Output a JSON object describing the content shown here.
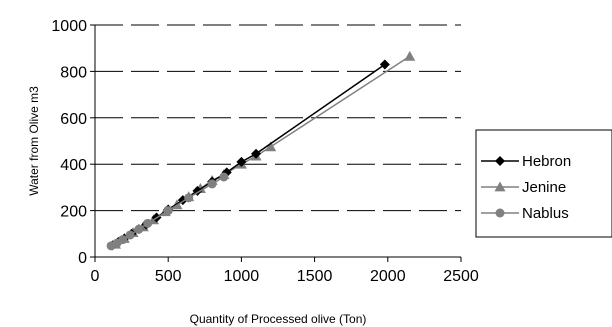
{
  "chart_data": {
    "type": "line",
    "xlabel": "Quantity of Processed olive (Ton)",
    "ylabel": "Water from Olive m3",
    "xlim": [
      0,
      2500
    ],
    "ylim": [
      0,
      1000
    ],
    "x_ticks": [
      "0",
      "500",
      "1000",
      "1500",
      "2000",
      "2500"
    ],
    "y_ticks": [
      "0",
      "200",
      "400",
      "600",
      "800",
      "1000"
    ],
    "grid": "horizontal dashed",
    "legend_position": "right",
    "series": [
      {
        "name": "Hebron",
        "marker": "diamond",
        "color": "#000000",
        "points": [
          [
            120,
            50
          ],
          [
            160,
            65
          ],
          [
            200,
            80
          ],
          [
            250,
            100
          ],
          [
            300,
            120
          ],
          [
            350,
            140
          ],
          [
            420,
            170
          ],
          [
            500,
            205
          ],
          [
            600,
            245
          ],
          [
            700,
            285
          ],
          [
            800,
            325
          ],
          [
            900,
            365
          ],
          [
            1000,
            410
          ],
          [
            1100,
            445
          ],
          [
            1980,
            830
          ]
        ]
      },
      {
        "name": "Jenine",
        "marker": "triangle",
        "color": "#808080",
        "points": [
          [
            140,
            55
          ],
          [
            200,
            80
          ],
          [
            260,
            105
          ],
          [
            330,
            130
          ],
          [
            400,
            160
          ],
          [
            480,
            195
          ],
          [
            560,
            225
          ],
          [
            640,
            260
          ],
          [
            720,
            295
          ],
          [
            800,
            330
          ],
          [
            880,
            355
          ],
          [
            1000,
            400
          ],
          [
            1100,
            435
          ],
          [
            1200,
            475
          ],
          [
            2150,
            865
          ]
        ]
      },
      {
        "name": "Nablus",
        "marker": "circle",
        "color": "#808080",
        "points": [
          [
            110,
            48
          ],
          [
            150,
            60
          ],
          [
            190,
            75
          ],
          [
            240,
            95
          ],
          [
            300,
            120
          ],
          [
            360,
            145
          ],
          [
            500,
            200
          ],
          [
            640,
            255
          ],
          [
            800,
            315
          ],
          [
            880,
            345
          ]
        ]
      }
    ]
  }
}
